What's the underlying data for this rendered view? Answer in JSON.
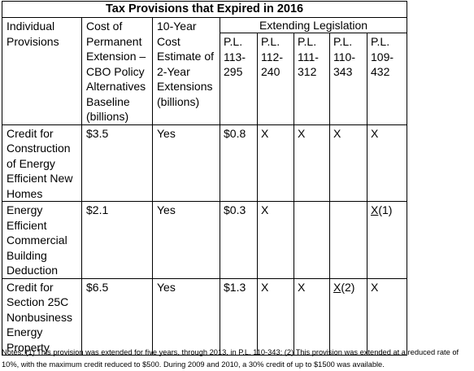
{
  "title": "Tax Provisions that Expired in 2016",
  "headers": {
    "provisions": "Individual Provisions",
    "cost": "Cost of Permanent Extension – CBO Policy Alternatives Baseline (billions)",
    "ten_year": "10-Year Cost Estimate of 2-Year Extensions (billions)",
    "extending": "Extending Legislation",
    "laws": [
      "P.L. 113-295",
      "P.L. 112-240",
      "P.L. 111-312",
      "P.L. 110-343",
      "P.L. 109-432"
    ]
  },
  "rows": [
    {
      "provision": "Credit for Construction of Energy Efficient New Homes",
      "cost": "$3.5",
      "ten_year": "Yes",
      "laws": [
        {
          "mark": "$0.8",
          "note": ""
        },
        {
          "mark": "X",
          "note": ""
        },
        {
          "mark": "X",
          "note": ""
        },
        {
          "mark": "X",
          "note": ""
        },
        {
          "mark": "X",
          "note": ""
        }
      ]
    },
    {
      "provision": "Energy Efficient Commercial Building Deduction",
      "cost": "$2.1",
      "ten_year": "Yes",
      "laws": [
        {
          "mark": "$0.3",
          "note": ""
        },
        {
          "mark": "X",
          "note": ""
        },
        {
          "mark": "",
          "note": ""
        },
        {
          "mark": "",
          "note": ""
        },
        {
          "mark": "X",
          "note": "(1)"
        }
      ]
    },
    {
      "provision": "Credit for Section 25C Nonbusiness Energy Property",
      "cost": "$6.5",
      "ten_year": "Yes",
      "laws": [
        {
          "mark": "$1.3",
          "note": ""
        },
        {
          "mark": "X",
          "note": ""
        },
        {
          "mark": "X",
          "note": ""
        },
        {
          "mark": "X",
          "note": "(2)"
        },
        {
          "mark": "X",
          "note": ""
        }
      ]
    }
  ],
  "notes": "Notes: (1) This provision was extended for five years, through 2013, in P.L. 110-343; (2) This provision was extended at a reduced rate of 10%, with the maximum credit reduced to $500. During 2009 and 2010, a 30% credit of up to $1500 was available."
}
